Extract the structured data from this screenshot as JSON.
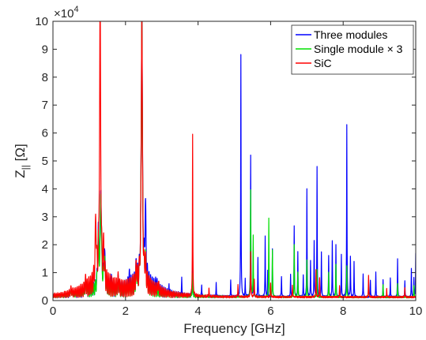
{
  "chart_data": {
    "type": "line",
    "title": "",
    "xlabel": "Frequency [GHz]",
    "ylabel_main": "Z",
    "ylabel_sub": "||",
    "ylabel_unit": " [Ω]",
    "exponent_label": "×10",
    "exponent_power": "4",
    "xlim": [
      0,
      10
    ],
    "ylim": [
      0,
      100000
    ],
    "x_ticks": [
      0,
      2,
      4,
      6,
      8,
      10
    ],
    "x_tick_labels": [
      "0",
      "2",
      "4",
      "6",
      "8",
      "10"
    ],
    "y_ticks": [
      0,
      10000,
      20000,
      30000,
      40000,
      50000,
      60000,
      70000,
      80000,
      90000,
      100000
    ],
    "y_tick_labels": [
      "0",
      "1",
      "2",
      "3",
      "4",
      "5",
      "6",
      "7",
      "8",
      "9",
      "10"
    ],
    "grid": false,
    "legend_position": "top-right",
    "series": [
      {
        "name": "Three modules",
        "color": "#0000ff",
        "peaks": [
          [
            0.5,
            1500
          ],
          [
            0.9,
            3000
          ],
          [
            1.25,
            20000
          ],
          [
            1.32,
            36000
          ],
          [
            1.42,
            14000
          ],
          [
            1.6,
            4000
          ],
          [
            1.8,
            3000
          ],
          [
            2.1,
            4000
          ],
          [
            2.3,
            6000
          ],
          [
            2.45,
            100000
          ],
          [
            2.55,
            26000
          ],
          [
            2.85,
            3000
          ],
          [
            3.2,
            4000
          ],
          [
            3.55,
            6000
          ],
          [
            3.85,
            14000
          ],
          [
            4.1,
            4500
          ],
          [
            4.5,
            5000
          ],
          [
            4.9,
            6000
          ],
          [
            5.18,
            87000
          ],
          [
            5.3,
            6000
          ],
          [
            5.45,
            50500
          ],
          [
            5.52,
            9000
          ],
          [
            5.65,
            14000
          ],
          [
            5.85,
            21500
          ],
          [
            5.92,
            9000
          ],
          [
            6.05,
            17000
          ],
          [
            6.3,
            7500
          ],
          [
            6.55,
            8000
          ],
          [
            6.65,
            25500
          ],
          [
            6.75,
            16000
          ],
          [
            6.9,
            8000
          ],
          [
            7.0,
            38500
          ],
          [
            7.1,
            13000
          ],
          [
            7.2,
            20000
          ],
          [
            7.28,
            46500
          ],
          [
            7.4,
            16000
          ],
          [
            7.6,
            15000
          ],
          [
            7.7,
            20000
          ],
          [
            7.8,
            18500
          ],
          [
            7.95,
            15000
          ],
          [
            8.1,
            61500
          ],
          [
            8.2,
            14500
          ],
          [
            8.3,
            12500
          ],
          [
            8.55,
            8500
          ],
          [
            8.75,
            6000
          ],
          [
            8.9,
            9000
          ],
          [
            9.1,
            6000
          ],
          [
            9.3,
            7000
          ],
          [
            9.5,
            13500
          ],
          [
            9.7,
            6000
          ],
          [
            9.88,
            10000
          ],
          [
            9.95,
            7000
          ],
          [
            10.0,
            15500
          ]
        ]
      },
      {
        "name": "Single module × 3",
        "color": "#00e000",
        "peaks": [
          [
            0.5,
            1500
          ],
          [
            0.9,
            3000
          ],
          [
            1.25,
            18000
          ],
          [
            1.32,
            35000
          ],
          [
            1.42,
            12000
          ],
          [
            1.8,
            3000
          ],
          [
            2.3,
            5000
          ],
          [
            2.45,
            100000
          ],
          [
            2.55,
            8000
          ],
          [
            3.85,
            8000
          ],
          [
            5.45,
            38000
          ],
          [
            5.52,
            22000
          ],
          [
            5.95,
            28500
          ],
          [
            6.05,
            17000
          ],
          [
            6.65,
            18500
          ],
          [
            6.75,
            9000
          ],
          [
            7.0,
            13000
          ],
          [
            7.28,
            10000
          ],
          [
            7.6,
            9000
          ],
          [
            7.8,
            12000
          ],
          [
            8.1,
            11000
          ],
          [
            8.7,
            6000
          ],
          [
            9.1,
            4500
          ],
          [
            9.5,
            5000
          ],
          [
            9.95,
            4000
          ]
        ]
      },
      {
        "name": "SiC",
        "color": "#ff0000",
        "peaks": [
          [
            0.5,
            1500
          ],
          [
            0.9,
            2500
          ],
          [
            1.18,
            23000
          ],
          [
            1.3,
            100000
          ],
          [
            1.4,
            12000
          ],
          [
            1.8,
            3000
          ],
          [
            2.3,
            6000
          ],
          [
            2.45,
            100000
          ],
          [
            2.55,
            7000
          ],
          [
            2.9,
            2500
          ],
          [
            3.85,
            57500
          ],
          [
            4.3,
            3000
          ],
          [
            5.1,
            4500
          ],
          [
            5.45,
            16000
          ],
          [
            5.55,
            6500
          ],
          [
            6.0,
            5000
          ],
          [
            6.6,
            4000
          ],
          [
            7.25,
            10000
          ],
          [
            7.35,
            7000
          ],
          [
            7.9,
            4000
          ],
          [
            8.7,
            8000
          ],
          [
            9.2,
            3000
          ],
          [
            9.7,
            3500
          ]
        ]
      }
    ]
  }
}
